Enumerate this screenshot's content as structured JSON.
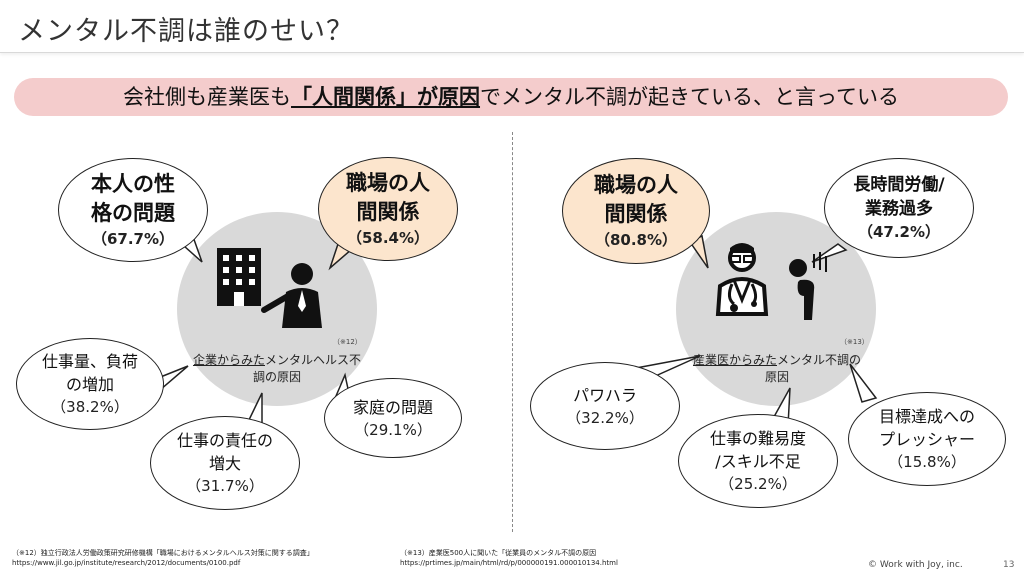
{
  "header": {
    "title": "メンタル不調は誰のせい？"
  },
  "banner": {
    "prefix": "会社側も産業医も",
    "emphasis": "「人間関係」が原因",
    "suffix": "でメンタル不調が起きている、と言っている"
  },
  "left": {
    "caption_underlined": "企業からみた",
    "caption_rest": "メンタルヘルス不調の原因",
    "note": "（※12）",
    "bubbles": [
      {
        "line1": "本人の性",
        "line2": "格の問題",
        "pct": "（67.7%）"
      },
      {
        "line1": "職場の人",
        "line2": "間関係",
        "pct": "（58.4%）"
      },
      {
        "line1": "仕事量、負荷",
        "line2": "の増加",
        "pct": "（38.2%）"
      },
      {
        "line1": "仕事の責任の",
        "line2": "増大",
        "pct": "（31.7%）"
      },
      {
        "line1": "家庭の問題",
        "line2": "",
        "pct": "（29.1%）"
      }
    ]
  },
  "right": {
    "caption_underlined": "産業医からみた",
    "caption_rest": "メンタル不調の原因",
    "note": "（※13）",
    "bubbles": [
      {
        "line1": "職場の人",
        "line2": "間関係",
        "pct": "（80.8%）"
      },
      {
        "line1": "長時間労働/",
        "line2": "業務過多",
        "pct": "（47.2%）"
      },
      {
        "line1": "パワハラ",
        "line2": "",
        "pct": "（32.2%）"
      },
      {
        "line1": "仕事の難易度",
        "line2": "/スキル不足",
        "pct": "（25.2%）"
      },
      {
        "line1": "目標達成への",
        "line2": "プレッシャー",
        "pct": "（15.8%）"
      }
    ]
  },
  "footnotes": {
    "left_line1": "（※12）独立行政法人労働政策研究研修機構「職場におけるメンタルヘルス対策に関する調査」",
    "left_line2": "https://www.jil.go.jp/institute/research/2012/documents/0100.pdf",
    "right_line1": "（※13）産業医500人に聞いた「従業員のメンタル不調の原因",
    "right_line2": "https://prtimes.jp/main/html/rd/p/000000191.000010134.html"
  },
  "copyright": "© Work with Joy, inc.",
  "page_number": "13",
  "colors": {
    "banner_bg": "#f4cccc",
    "highlight_bubble": "#fce5cd",
    "circle_bg": "#d9d9d9"
  },
  "icons": [
    "office-building-icon",
    "presenter-icon",
    "doctor-icon",
    "stressed-person-icon"
  ]
}
